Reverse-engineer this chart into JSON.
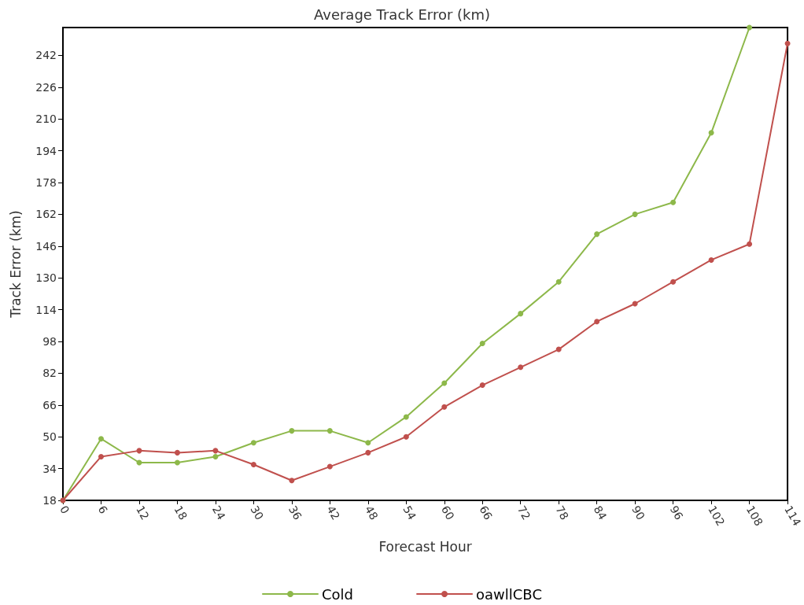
{
  "chart_data": {
    "type": "line",
    "title": "Average Track Error (km)",
    "xlabel": "Forecast Hour",
    "ylabel": "Track Error (km)",
    "x": [
      0,
      6,
      12,
      18,
      24,
      30,
      36,
      42,
      48,
      54,
      60,
      66,
      72,
      78,
      84,
      90,
      96,
      102,
      108,
      114
    ],
    "series": [
      {
        "name": "Cold",
        "color": "#8db84a",
        "values": [
          18,
          49,
          37,
          37,
          40,
          47,
          53,
          53,
          47,
          60,
          77,
          97,
          112,
          128,
          152,
          162,
          168,
          203,
          256,
          null
        ]
      },
      {
        "name": "oawllCBC",
        "color": "#c0504d",
        "values": [
          18,
          40,
          43,
          42,
          43,
          36,
          28,
          35,
          42,
          50,
          65,
          76,
          85,
          94,
          108,
          117,
          128,
          139,
          147,
          248
        ]
      }
    ],
    "xlim": [
      0,
      114
    ],
    "xticks": [
      0,
      6,
      12,
      18,
      24,
      30,
      36,
      42,
      48,
      54,
      60,
      66,
      72,
      78,
      84,
      90,
      96,
      102,
      108,
      114
    ],
    "ylim": [
      18,
      256
    ],
    "yticks": [
      18,
      34,
      50,
      66,
      82,
      98,
      114,
      130,
      146,
      162,
      178,
      194,
      210,
      226,
      242
    ],
    "grid": false,
    "legend": "bottom",
    "marker": "circle",
    "line_style": "solid"
  }
}
